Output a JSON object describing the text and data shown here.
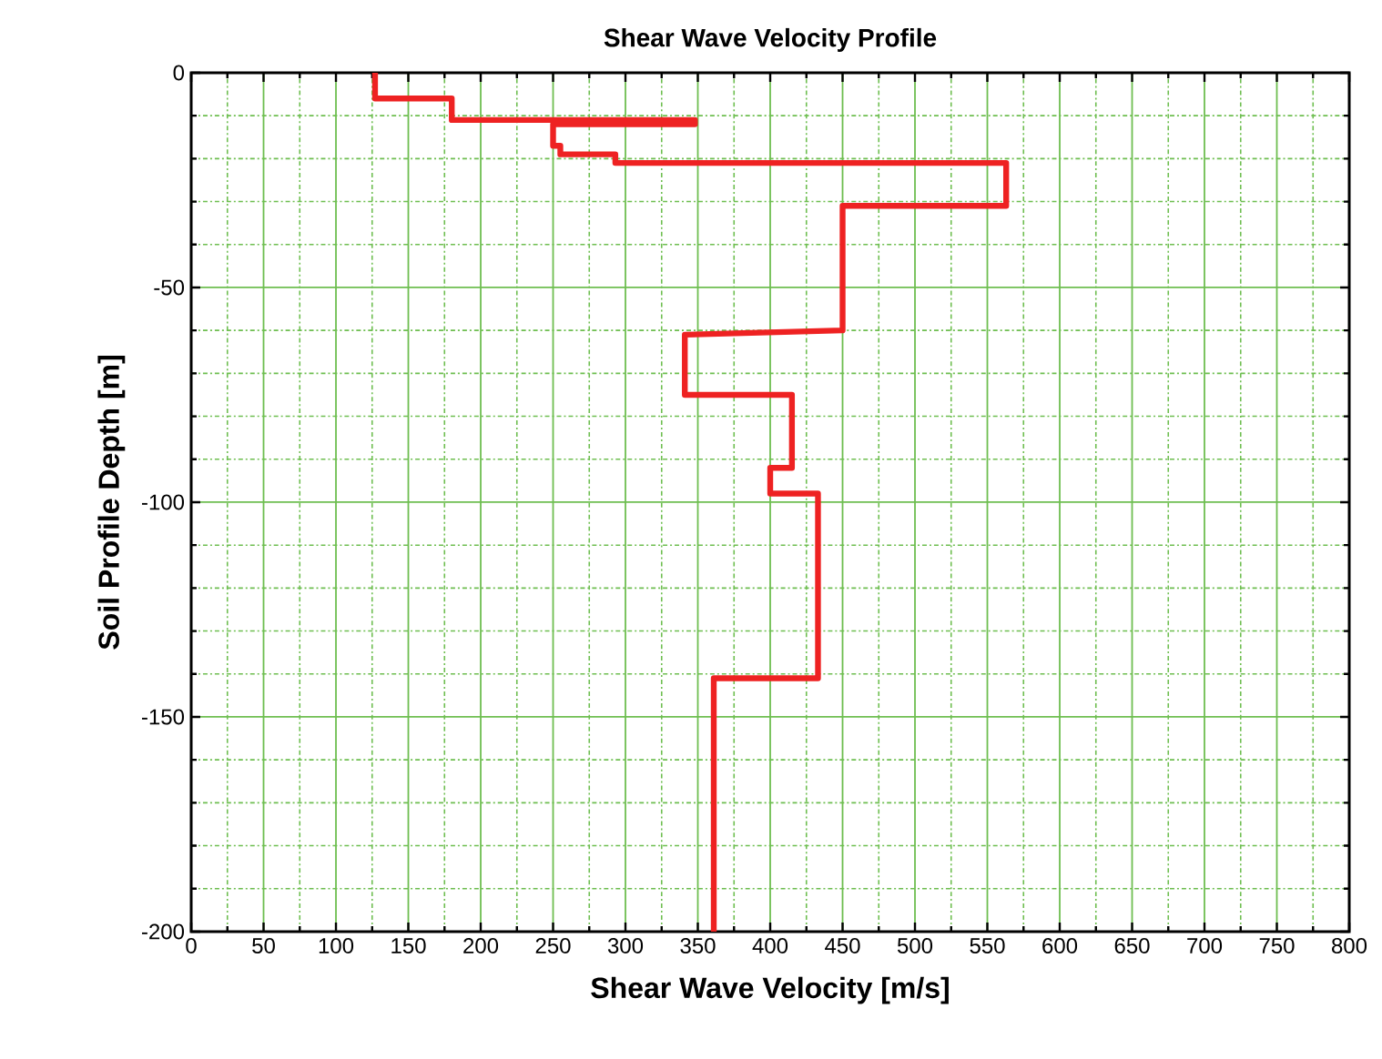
{
  "chart_data": {
    "type": "line",
    "title": "Shear Wave Velocity Profile",
    "xlabel": "Shear Wave Velocity [m/s]",
    "ylabel": "Soil Profile Depth [m]",
    "x": [
      127,
      127,
      180,
      180,
      348,
      348,
      250,
      250,
      255,
      255,
      293,
      293,
      563,
      563,
      450,
      450,
      341,
      341,
      415,
      415,
      400,
      400,
      433,
      433,
      361,
      361
    ],
    "values": [
      0,
      -6,
      -6,
      -11,
      -11,
      -12,
      -12,
      -17,
      -17,
      -19,
      -19,
      -21,
      -21,
      -31,
      -31,
      -60,
      -61,
      -75,
      -75,
      -92,
      -92,
      -98,
      -98,
      -141,
      -141,
      -200
    ],
    "color": "#ee2222",
    "line_style": "solid",
    "xlim": [
      0,
      800
    ],
    "ylim": [
      -200,
      0
    ],
    "xticks": [
      0,
      {
        "value": 25,
        "label": null
      },
      50,
      {
        "value": 75,
        "label": null
      },
      100,
      {
        "value": 125,
        "label": null
      },
      150,
      {
        "value": 175,
        "label": null
      },
      200,
      {
        "value": 225,
        "label": null
      },
      250,
      {
        "value": 275,
        "label": null
      },
      300,
      {
        "value": 325,
        "label": null
      },
      350,
      {
        "value": 375,
        "label": null
      },
      400,
      {
        "value": 425,
        "label": null
      },
      450,
      {
        "value": 475,
        "label": null
      },
      500,
      {
        "value": 525,
        "label": null
      },
      550,
      {
        "value": 575,
        "label": null
      },
      600,
      {
        "value": 625,
        "label": null
      },
      650,
      {
        "value": 675,
        "label": null
      },
      700,
      {
        "value": 725,
        "label": null
      },
      750,
      {
        "value": 775,
        "label": null
      },
      800
    ],
    "yticks": [
      -200,
      {
        "value": -190,
        "label": null
      },
      {
        "value": -180,
        "label": null
      },
      {
        "value": -170,
        "label": null
      },
      {
        "value": -160,
        "label": null
      },
      -150,
      {
        "value": -140,
        "label": null
      },
      {
        "value": -130,
        "label": null
      },
      {
        "value": -120,
        "label": null
      },
      {
        "value": -110,
        "label": null
      },
      -100,
      {
        "value": -90,
        "label": null
      },
      {
        "value": -80,
        "label": null
      },
      {
        "value": -70,
        "label": null
      },
      {
        "value": -60,
        "label": null
      },
      -50,
      {
        "value": -40,
        "label": null
      },
      {
        "value": -30,
        "label": null
      },
      {
        "value": -20,
        "label": null
      },
      {
        "value": -10,
        "label": null
      },
      0
    ],
    "grid": true
  }
}
